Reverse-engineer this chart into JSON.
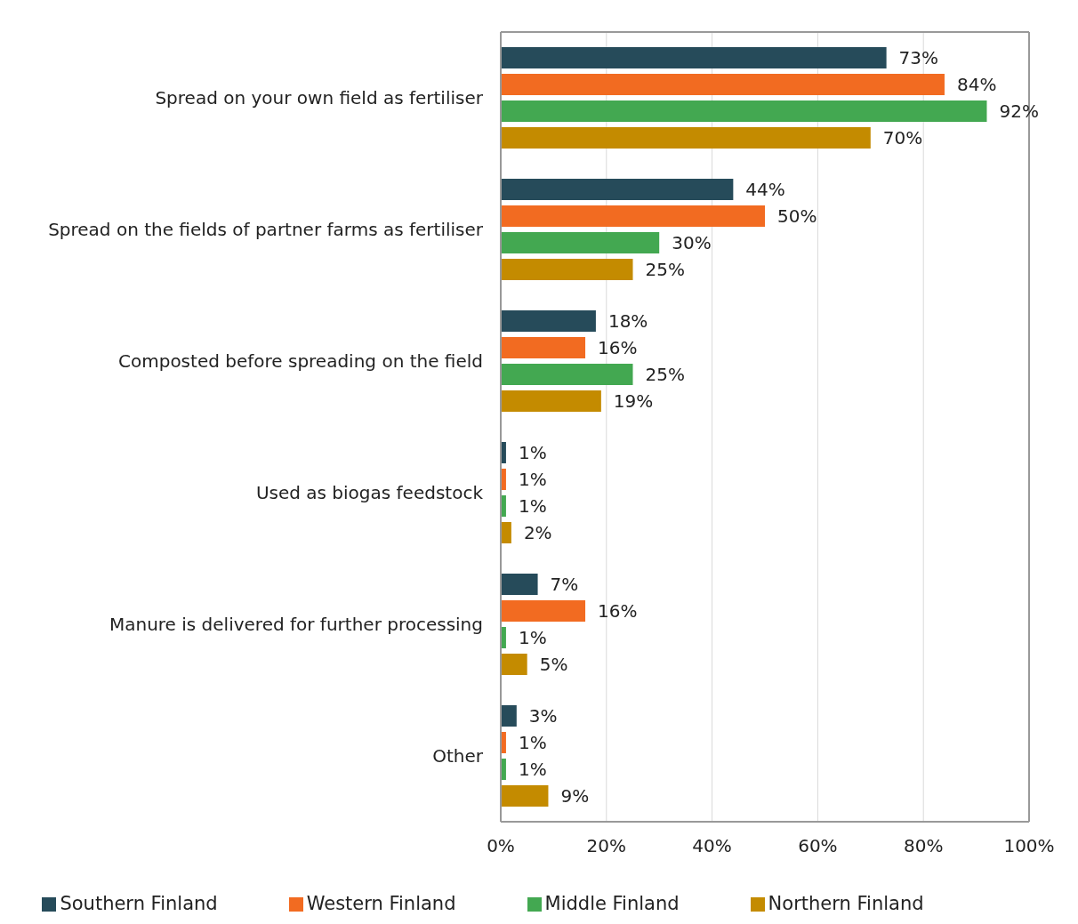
{
  "chart_data": {
    "type": "bar",
    "orientation": "horizontal",
    "categories": [
      "Spread on your own field as fertiliser",
      "Spread on the fields of partner farms as fertiliser",
      "Composted before spreading on the field",
      "Used as biogas feedstock",
      "Manure is delivered for further processing",
      "Other"
    ],
    "series": [
      {
        "name": "Southern Finland",
        "color": "#264b5a",
        "values": [
          73,
          44,
          18,
          1,
          7,
          3
        ],
        "value_labels": [
          "73%",
          "44%",
          "18%",
          "1%",
          "7%",
          "3%"
        ]
      },
      {
        "name": "Western Finland",
        "color": "#f26b21",
        "values": [
          84,
          50,
          16,
          1,
          16,
          1
        ],
        "value_labels": [
          "84%",
          "50%",
          "16%",
          "1%",
          "16%",
          "1%"
        ]
      },
      {
        "name": "Middle Finland",
        "color": "#43a851",
        "values": [
          92,
          30,
          25,
          1,
          1,
          1
        ],
        "value_labels": [
          "92%",
          "30%",
          "25%",
          "1%",
          "1%",
          "1%"
        ]
      },
      {
        "name": "Northern Finland",
        "color": "#c48b00",
        "values": [
          70,
          25,
          19,
          2,
          5,
          9
        ],
        "value_labels": [
          "70%",
          "25%",
          "19%",
          "2%",
          "5%",
          "9%"
        ]
      }
    ],
    "xlim": [
      0,
      100
    ],
    "xticks": [
      {
        "value": 0,
        "label": "0%"
      },
      {
        "value": 20,
        "label": "20%"
      },
      {
        "value": 40,
        "label": "40%"
      },
      {
        "value": 60,
        "label": "60%"
      },
      {
        "value": 80,
        "label": "80%"
      },
      {
        "value": 100,
        "label": "100%"
      }
    ],
    "grid": "x",
    "legend": "bottom"
  }
}
